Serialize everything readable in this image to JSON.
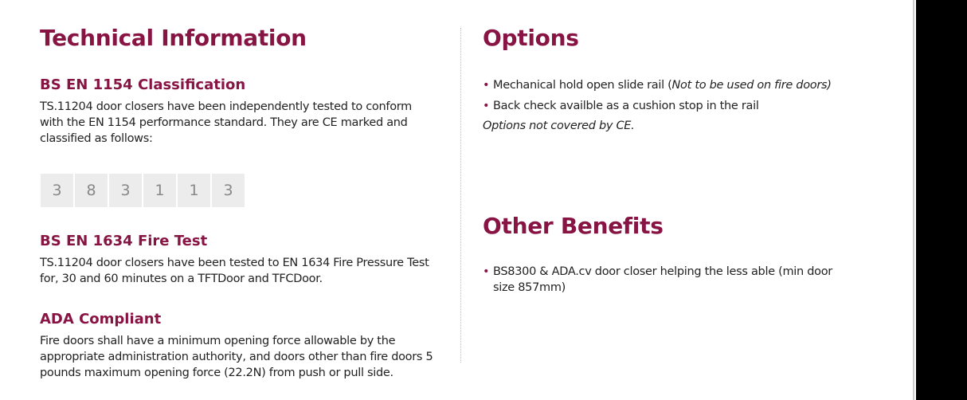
{
  "left": {
    "title": "Technical Information",
    "sections": [
      {
        "heading": "BS EN 1154 Classification",
        "body": "TS.11204 door closers have been independently tested to conform with the EN 1154 performance standard. They are CE marked and classified as follows:"
      },
      {
        "heading": "BS EN 1634 Fire Test",
        "body": "TS.11204 door closers have been tested to EN 1634 Fire Pressure Test for, 30 and 60 minutes on a TFTDoor and TFCDoor."
      },
      {
        "heading": "ADA Compliant",
        "body": "Fire doors shall have a minimum opening force allowable by the appropriate administration authority, and doors other than fire doors 5 pounds maximum opening force (22.2N) from push or pull side."
      }
    ],
    "classification": [
      "3",
      "8",
      "3",
      "1",
      "1",
      "3"
    ]
  },
  "right": {
    "options_title": "Options",
    "options": [
      {
        "text": "Mechanical hold open slide rail (",
        "italic": "Not to be used on fire doors)"
      },
      {
        "text": "Back check availble as a cushion stop in the rail",
        "italic": ""
      }
    ],
    "options_note": "Options not covered by CE.",
    "benefits_title": "Other Benefits",
    "benefits": [
      "BS8300 & ADA.cv door closer helping the less able (min door size 857mm)"
    ]
  },
  "colors": {
    "accent": "#871443",
    "box": "#ececec"
  }
}
